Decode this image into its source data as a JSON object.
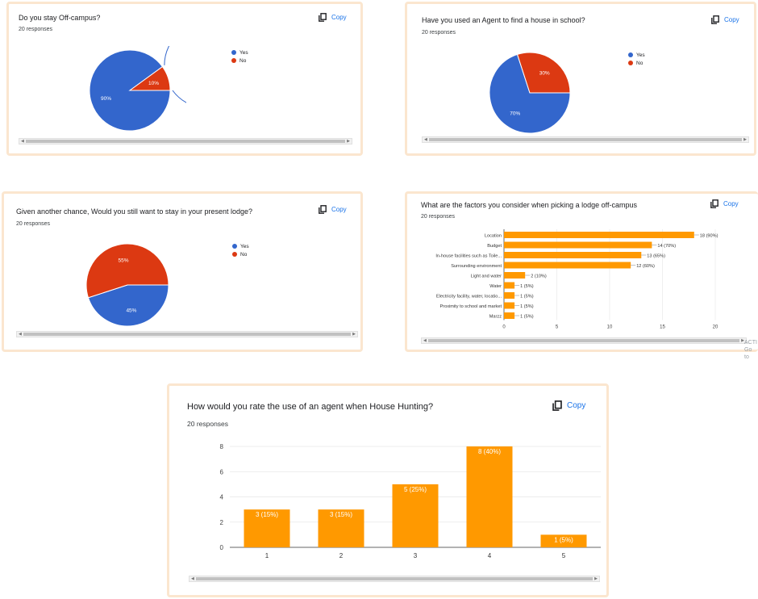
{
  "copy_label": "Copy",
  "colors": {
    "blue": "#3366cc",
    "red": "#dc3912",
    "orange": "#ff9900",
    "link": "#1a73e8"
  },
  "cards": [
    {
      "title": "Do you stay Off-campus?",
      "responses": "20 responses"
    },
    {
      "title": "Have you used an Agent to find a house in school?",
      "responses": "20 responses"
    },
    {
      "title": "Given another chance, Would you still want to stay in your present lodge?",
      "responses": "20 responses"
    },
    {
      "title": "What are the factors you consider when picking a lodge off-campus",
      "responses": "20 responses"
    },
    {
      "title": "How would you rate the use of an agent when House Hunting?",
      "responses": "20 responses"
    }
  ],
  "overlay_text": {
    "line1": "ACTI",
    "line2": "Go to"
  },
  "chart_data": [
    {
      "type": "pie",
      "legend": [
        "Yes",
        "No"
      ],
      "values": [
        90,
        10
      ],
      "labels": [
        "90%",
        "10%"
      ],
      "legend_position": "right"
    },
    {
      "type": "pie",
      "legend": [
        "Yes",
        "No"
      ],
      "values": [
        70,
        30
      ],
      "labels": [
        "70%",
        "30%"
      ],
      "legend_position": "right"
    },
    {
      "type": "pie",
      "legend": [
        "Yes",
        "No"
      ],
      "values": [
        45,
        55
      ],
      "labels": [
        "45%",
        "55%"
      ],
      "legend_position": "right"
    },
    {
      "type": "bar",
      "orientation": "horizontal",
      "categories": [
        "Location",
        "Budget",
        "In-house facilities such as Toile...",
        "Surrounding environment",
        "Light and water",
        "Water",
        "Electricity facility, water, locatio...",
        "Proximity to school and market",
        "Marzz"
      ],
      "values": [
        18,
        14,
        13,
        12,
        2,
        1,
        1,
        1,
        1
      ],
      "data_labels": [
        "18 (90%)",
        "14 (70%)",
        "13 (65%)",
        "12 (60%)",
        "2 (10%)",
        "1 (5%)",
        "1 (5%)",
        "1 (5%)",
        "1 (5%)"
      ],
      "xlim": [
        0,
        20
      ],
      "xticks": [
        "0",
        "5",
        "10",
        "15",
        "20"
      ]
    },
    {
      "type": "bar",
      "orientation": "vertical",
      "categories": [
        "1",
        "2",
        "3",
        "4",
        "5"
      ],
      "values": [
        3,
        3,
        5,
        8,
        1
      ],
      "data_labels": [
        "3 (15%)",
        "3 (15%)",
        "5 (25%)",
        "8 (40%)",
        "1 (5%)"
      ],
      "ylim": [
        0,
        8
      ],
      "yticks": [
        "0",
        "2",
        "4",
        "6",
        "8"
      ],
      "grid": true
    }
  ]
}
